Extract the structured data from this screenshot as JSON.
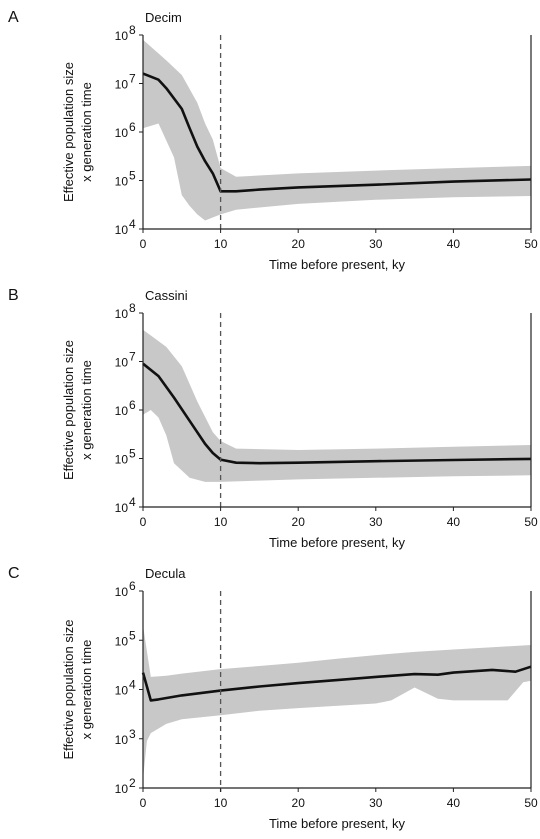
{
  "colors": {
    "band": "#c8c8c8",
    "line": "#111111",
    "axis": "#222222",
    "vline": "#555555"
  },
  "chart_data": [
    {
      "letter": "A",
      "title": "Decim",
      "type": "area",
      "xlabel": "Time before present, ky",
      "ylabel_1": "Effective population size",
      "ylabel_2": "x generation time",
      "yscale": "log",
      "xlim": [
        0,
        50
      ],
      "ylim_exp": [
        4,
        8
      ],
      "xticks": [
        0,
        10,
        20,
        30,
        40,
        50
      ],
      "xtick_labels": [
        "0",
        "10",
        "20",
        "30",
        "40",
        "50"
      ],
      "ytick_exps": [
        4,
        5,
        6,
        7,
        8
      ],
      "ytick_mantissa": [
        "10",
        "10",
        "10",
        "10",
        "10"
      ],
      "ytick_exp_labels": [
        "4",
        "5",
        "6",
        "7",
        "8"
      ],
      "vline_x": 10,
      "median": [
        [
          0,
          16000000
        ],
        [
          2,
          12000000
        ],
        [
          3,
          8000000
        ],
        [
          5,
          3000000
        ],
        [
          6,
          1200000
        ],
        [
          7,
          500000
        ],
        [
          8,
          250000
        ],
        [
          9,
          140000
        ],
        [
          10,
          60000
        ],
        [
          12,
          60000
        ],
        [
          15,
          65000
        ],
        [
          20,
          72000
        ],
        [
          30,
          82000
        ],
        [
          40,
          95000
        ],
        [
          50,
          105000
        ]
      ],
      "upper": [
        [
          0,
          80000000
        ],
        [
          3,
          30000000
        ],
        [
          5,
          15000000
        ],
        [
          7,
          4000000
        ],
        [
          8,
          1500000
        ],
        [
          9,
          700000
        ],
        [
          10,
          180000
        ],
        [
          12,
          120000
        ],
        [
          20,
          140000
        ],
        [
          30,
          160000
        ],
        [
          40,
          180000
        ],
        [
          50,
          200000
        ]
      ],
      "lower": [
        [
          0,
          1200000
        ],
        [
          2,
          1500000
        ],
        [
          4,
          300000
        ],
        [
          5,
          50000
        ],
        [
          6,
          30000
        ],
        [
          7,
          20000
        ],
        [
          8,
          15000
        ],
        [
          10,
          20000
        ],
        [
          12,
          25000
        ],
        [
          20,
          33000
        ],
        [
          30,
          40000
        ],
        [
          40,
          45000
        ],
        [
          50,
          48000
        ]
      ]
    },
    {
      "letter": "B",
      "title": "Cassini",
      "type": "area",
      "xlabel": "Time before present, ky",
      "ylabel_1": "Effective population size",
      "ylabel_2": "x generation time",
      "yscale": "log",
      "xlim": [
        0,
        50
      ],
      "ylim_exp": [
        4,
        8
      ],
      "xticks": [
        0,
        10,
        20,
        30,
        40,
        50
      ],
      "xtick_labels": [
        "0",
        "10",
        "20",
        "30",
        "40",
        "50"
      ],
      "ytick_exps": [
        4,
        5,
        6,
        7,
        8
      ],
      "ytick_mantissa": [
        "10",
        "10",
        "10",
        "10",
        "10"
      ],
      "ytick_exp_labels": [
        "4",
        "5",
        "6",
        "7",
        "8"
      ],
      "vline_x": 10,
      "median": [
        [
          0,
          9000000
        ],
        [
          2,
          5000000
        ],
        [
          4,
          1800000
        ],
        [
          6,
          600000
        ],
        [
          8,
          200000
        ],
        [
          9,
          130000
        ],
        [
          10,
          95000
        ],
        [
          12,
          82000
        ],
        [
          15,
          80000
        ],
        [
          20,
          82000
        ],
        [
          30,
          88000
        ],
        [
          40,
          93000
        ],
        [
          50,
          98000
        ]
      ],
      "upper": [
        [
          0,
          45000000
        ],
        [
          3,
          20000000
        ],
        [
          5,
          8000000
        ],
        [
          7,
          1500000
        ],
        [
          9,
          350000
        ],
        [
          10,
          230000
        ],
        [
          12,
          160000
        ],
        [
          20,
          150000
        ],
        [
          30,
          160000
        ],
        [
          40,
          175000
        ],
        [
          50,
          190000
        ]
      ],
      "lower": [
        [
          0,
          800000
        ],
        [
          1,
          1000000
        ],
        [
          2,
          700000
        ],
        [
          3,
          300000
        ],
        [
          4,
          80000
        ],
        [
          6,
          40000
        ],
        [
          8,
          33000
        ],
        [
          10,
          33000
        ],
        [
          15,
          35000
        ],
        [
          20,
          37000
        ],
        [
          30,
          40000
        ],
        [
          40,
          43000
        ],
        [
          50,
          45000
        ]
      ]
    },
    {
      "letter": "C",
      "title": "Decula",
      "type": "area",
      "xlabel": "Time before present, ky",
      "ylabel_1": "Effective population size",
      "ylabel_2": "x generation time",
      "yscale": "log",
      "xlim": [
        0,
        50
      ],
      "ylim_exp": [
        2,
        6
      ],
      "xticks": [
        0,
        10,
        20,
        30,
        40,
        50
      ],
      "xtick_labels": [
        "0",
        "10",
        "20",
        "30",
        "40",
        "50"
      ],
      "ytick_exps": [
        2,
        3,
        4,
        5,
        6
      ],
      "ytick_mantissa": [
        "10",
        "10",
        "10",
        "10",
        "10"
      ],
      "ytick_exp_labels": [
        "2",
        "3",
        "4",
        "5",
        "6"
      ],
      "vline_x": 10,
      "median": [
        [
          0,
          22000
        ],
        [
          1,
          6000
        ],
        [
          2,
          6300
        ],
        [
          5,
          7600
        ],
        [
          10,
          9500
        ],
        [
          15,
          11500
        ],
        [
          20,
          13500
        ],
        [
          25,
          15500
        ],
        [
          30,
          18000
        ],
        [
          35,
          20500
        ],
        [
          38,
          20000
        ],
        [
          40,
          22000
        ],
        [
          45,
          25000
        ],
        [
          48,
          23000
        ],
        [
          50,
          29000
        ]
      ],
      "upper": [
        [
          0,
          200000
        ],
        [
          1,
          18000
        ],
        [
          3,
          19000
        ],
        [
          5,
          21000
        ],
        [
          10,
          26000
        ],
        [
          15,
          30000
        ],
        [
          20,
          35000
        ],
        [
          25,
          42000
        ],
        [
          30,
          50000
        ],
        [
          35,
          58000
        ],
        [
          40,
          65000
        ],
        [
          45,
          72000
        ],
        [
          50,
          80000
        ]
      ],
      "lower": [
        [
          0,
          150
        ],
        [
          0.5,
          900
        ],
        [
          1,
          1300
        ],
        [
          3,
          2000
        ],
        [
          5,
          2500
        ],
        [
          10,
          3000
        ],
        [
          15,
          3700
        ],
        [
          20,
          4200
        ],
        [
          30,
          5200
        ],
        [
          32,
          6000
        ],
        [
          35,
          11000
        ],
        [
          38,
          6500
        ],
        [
          40,
          6000
        ],
        [
          44,
          6000
        ],
        [
          47,
          6000
        ],
        [
          49,
          14000
        ],
        [
          50,
          15000
        ]
      ]
    }
  ]
}
